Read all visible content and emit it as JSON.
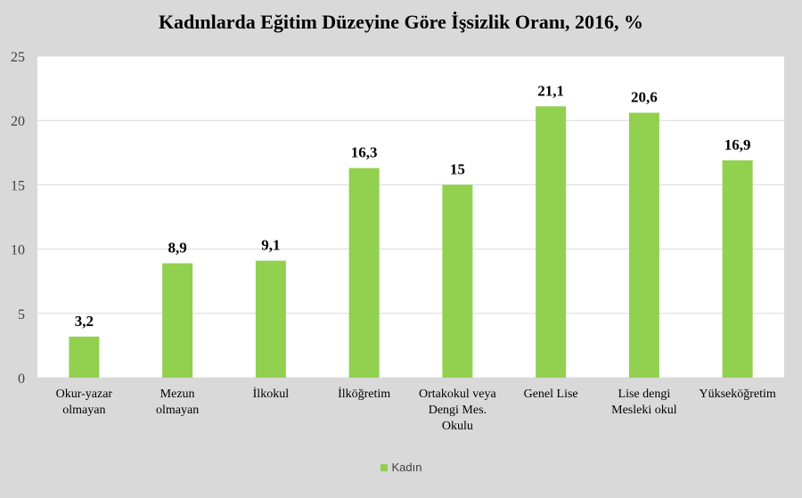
{
  "chart_data": {
    "type": "bar",
    "title": "Kadınlarda Eğitim Düzeyine Göre İşsizlik Oranı, 2016, %",
    "categories": [
      [
        "Okur-yazar",
        "olmayan"
      ],
      [
        "Mezun",
        "olmayan"
      ],
      [
        "İlkokul"
      ],
      [
        "İlköğretim"
      ],
      [
        "Ortakokul veya",
        "Dengi Mes.",
        "Okulu"
      ],
      [
        "Genel Lise"
      ],
      [
        "Lise dengi",
        "Mesleki okul"
      ],
      [
        "Yükseköğretim"
      ]
    ],
    "series": [
      {
        "name": "Kadın",
        "values": [
          3.2,
          8.9,
          9.1,
          16.3,
          15,
          21.1,
          20.6,
          16.9
        ],
        "labels": [
          "3,2",
          "8,9",
          "9,1",
          "16,3",
          "15",
          "21,1",
          "20,6",
          "16,9"
        ]
      }
    ],
    "ylim": [
      0,
      25
    ],
    "yticks": [
      0,
      5,
      10,
      15,
      20,
      25
    ],
    "grid": true,
    "legend_position": "bottom",
    "colors": {
      "bar": "#92d050",
      "grid": "#d9d9d9",
      "plot_bg": "#ffffff",
      "page_bg": "#d9d9d9"
    }
  }
}
